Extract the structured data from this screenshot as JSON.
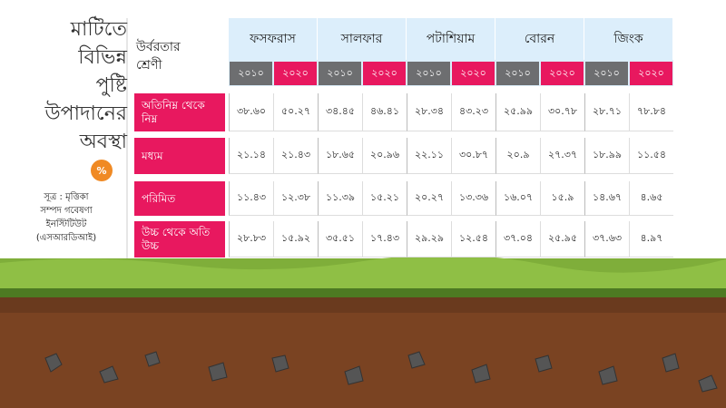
{
  "title_lines": [
    "মাটিতে",
    "বিভিন্ন",
    "পুষ্টি",
    "উপাদানের",
    "অবস্থা"
  ],
  "icon": "%",
  "source_lines": [
    "সূত্র : মৃত্তিকা",
    "সম্পদ গবেষণা",
    "ইনস্টিটিউট",
    "(এসআরডিআই)"
  ],
  "table": {
    "corner": "উর্বরতার শ্রেণী",
    "groups": [
      "ফসফরাস",
      "সালফার",
      "পটাশিয়াম",
      "বোরন",
      "জিংক"
    ],
    "years": [
      "২০১০",
      "২০২০"
    ],
    "rows": [
      {
        "label": "অতিনিম্ন থেকে নিম্ন",
        "cells": [
          "৩৮.৬০",
          "৫০.২৭",
          "৩৪.৪৫",
          "৪৬.৪১",
          "২৮.৩৪",
          "৪৩.২৩",
          "২৫.৯৯",
          "৩০.৭৮",
          "২৮.৭১",
          "৭৮.৮৪"
        ]
      },
      {
        "label": "মধ্যম",
        "cells": [
          "২১.১৪",
          "২১.৪৩",
          "১৮.৬৫",
          "২০.৯৬",
          "২২.১১",
          "৩০.৮৭",
          "২০.৯",
          "২৭.৩৭",
          "১৮.৯৯",
          "১১.৫৪"
        ]
      },
      {
        "label": "পরিমিত",
        "cells": [
          "১১.৪৩",
          "১২.৩৮",
          "১১.৩৯",
          "১৫.২১",
          "২০.২৭",
          "১৩.৩৬",
          "১৬.০৭",
          "১৫.৯",
          "১৪.৬৭",
          "৪.৬৫"
        ]
      },
      {
        "label": "উচ্চ থেকে অতি উচ্চ",
        "cells": [
          "২৮.৮৩",
          "১৫.৯২",
          "৩৫.৫১",
          "১৭.৪৩",
          "২৯.২৯",
          "১২.৫৪",
          "৩৭.০৪",
          "২৫.৯৫",
          "৩৭.৬৩",
          "৪.৯৭"
        ]
      }
    ]
  }
}
